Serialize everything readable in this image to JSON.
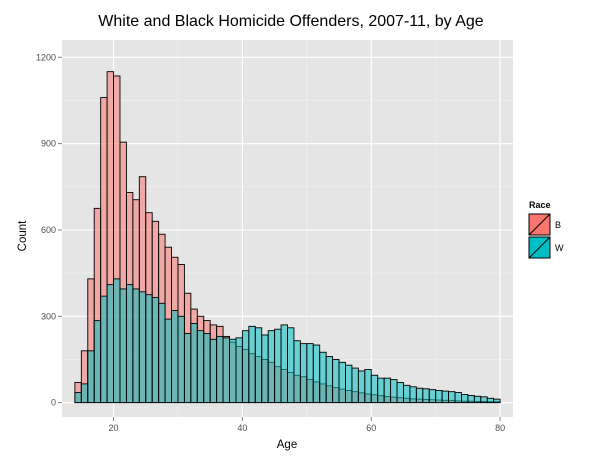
{
  "chart_data": {
    "type": "bar",
    "subtype": "overlaid-histogram",
    "title": "White and Black Homicide Offenders, 2007-11, by Age",
    "xlabel": "Age",
    "ylabel": "Count",
    "xlim": [
      12,
      82
    ],
    "ylim": [
      -50,
      1260
    ],
    "xticks": [
      20,
      40,
      60,
      80
    ],
    "yticks": [
      0,
      300,
      600,
      900,
      1200
    ],
    "x_tick_labels": [
      "20",
      "40",
      "60",
      "80"
    ],
    "y_tick_labels": [
      "0",
      "300",
      "600",
      "900",
      "1200"
    ],
    "grid": true,
    "legend_placement": "right",
    "legend_title": "Race",
    "bin_start": 14,
    "bin_width": 1,
    "series": [
      {
        "name": "B",
        "color": "#F8766D",
        "values": [
          70,
          180,
          430,
          675,
          1060,
          1150,
          1135,
          905,
          730,
          705,
          785,
          660,
          630,
          585,
          540,
          505,
          480,
          380,
          325,
          300,
          285,
          270,
          265,
          230,
          210,
          195,
          185,
          170,
          160,
          150,
          140,
          125,
          115,
          105,
          95,
          90,
          80,
          72,
          65,
          58,
          52,
          47,
          42,
          38,
          34,
          30,
          27,
          24,
          21,
          19,
          17,
          15,
          13,
          12,
          11,
          10,
          9,
          8,
          7,
          6,
          5,
          5,
          4,
          4,
          3,
          3
        ]
      },
      {
        "name": "W",
        "color": "#00BFC4",
        "values": [
          35,
          65,
          180,
          285,
          370,
          410,
          430,
          395,
          410,
          395,
          385,
          375,
          365,
          345,
          290,
          320,
          300,
          240,
          275,
          250,
          240,
          220,
          230,
          225,
          220,
          225,
          250,
          265,
          260,
          235,
          250,
          255,
          270,
          260,
          215,
          205,
          205,
          200,
          175,
          160,
          150,
          140,
          130,
          120,
          110,
          115,
          95,
          85,
          85,
          80,
          70,
          60,
          55,
          50,
          48,
          45,
          42,
          40,
          38,
          35,
          28,
          25,
          22,
          20,
          15,
          12
        ]
      }
    ]
  }
}
